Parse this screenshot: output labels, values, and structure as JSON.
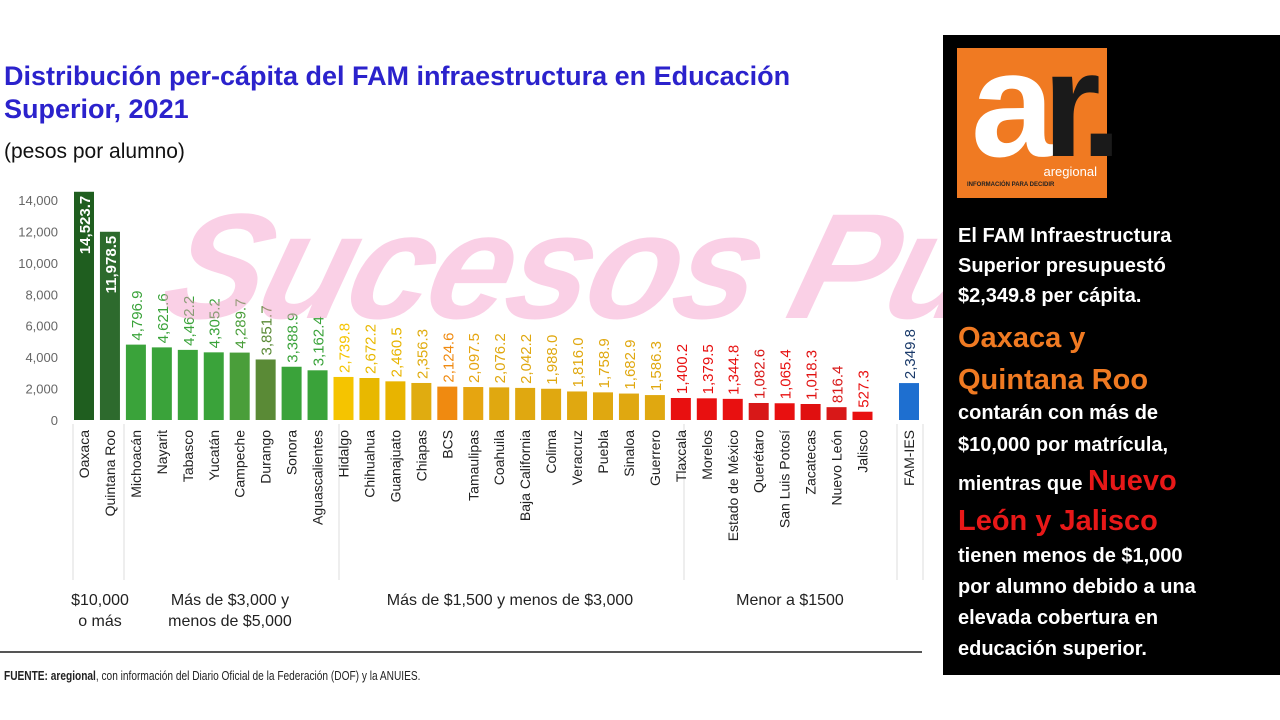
{
  "title": "Distribución per-cápita del FAM infraestructura en Educación Superior, 2021",
  "subtitle": "(pesos por alumno)",
  "chart_data": {
    "type": "bar",
    "title": "Distribución per-cápita del FAM infraestructura en Educación Superior, 2021",
    "ylabel": "(pesos por alumno)",
    "ylim": [
      0,
      14000
    ],
    "yticks": [
      "0",
      "2,000",
      "4,000",
      "6,000",
      "8,000",
      "10,000",
      "12,000",
      "14,000"
    ],
    "grid": false,
    "categories": [
      "Oaxaca",
      "Quintana Roo",
      "Michoacán",
      "Nayarit",
      "Tabasco",
      "Yucatán",
      "Campeche",
      "Durango",
      "Sonora",
      "Aguascalientes",
      "Hidalgo",
      "Chihuahua",
      "Guanajuato",
      "Chiapas",
      "BCS",
      "Tamaulipas",
      "Coahuila",
      "Baja California",
      "Colima",
      "Veracruz",
      "Puebla",
      "Sinaloa",
      "Guerrero",
      "Tlaxcala",
      "Morelos",
      "Estado de México",
      "Querétaro",
      "San Luis Potosí",
      "Zacatecas",
      "Nuevo León",
      "Jalisco",
      "FAM-IES"
    ],
    "values": [
      14523.7,
      11978.5,
      4796.9,
      4621.6,
      4462.2,
      4305.2,
      4289.7,
      3851.7,
      3388.9,
      3162.4,
      2739.8,
      2672.2,
      2460.5,
      2356.3,
      2124.6,
      2097.5,
      2076.2,
      2042.2,
      1988.0,
      1816.0,
      1758.9,
      1682.9,
      1586.3,
      1400.2,
      1379.5,
      1344.8,
      1082.6,
      1065.4,
      1018.3,
      816.4,
      527.3,
      2349.8
    ],
    "value_labels": [
      "14,523.7",
      "11,978.5",
      "4,796.9",
      "4,621.6",
      "4,462.2",
      "4,305.2",
      "4,289.7",
      "3,851.7",
      "3,388.9",
      "3,162.4",
      "2,739.8",
      "2,672.2",
      "2,460.5",
      "2,356.3",
      "2,124.6",
      "2,097.5",
      "2,076.2",
      "2,042.2",
      "1,988.0",
      "1,816.0",
      "1,758.9",
      "1,682.9",
      "1,586.3",
      "1,400.2",
      "1,379.5",
      "1,344.8",
      "1,082.6",
      "1,065.4",
      "1,018.3",
      "816.4",
      "527.3",
      "2,349.8"
    ],
    "colors": [
      "#1f5e1f",
      "#2d6a2d",
      "#3aa33a",
      "#3aa33a",
      "#3aa33a",
      "#3aa33a",
      "#4a9e3a",
      "#5a8a36",
      "#3aa33a",
      "#3aa33a",
      "#f5c400",
      "#e8b800",
      "#e8b400",
      "#e0ac10",
      "#f08a10",
      "#e6a510",
      "#e0a810",
      "#e0a810",
      "#e0a810",
      "#e0a810",
      "#e0a810",
      "#e0a810",
      "#e0a810",
      "#e81010",
      "#e81010",
      "#e81010",
      "#d81818",
      "#e81010",
      "#e01010",
      "#d81818",
      "#e81010",
      "#1e6fd0"
    ],
    "groups": [
      {
        "label": "$10,000 o más",
        "from": 0,
        "to": 1
      },
      {
        "label": "Más de $3,000 y menos de $5,000",
        "from": 2,
        "to": 9
      },
      {
        "label": "Más de $1,500 y menos de $3,000",
        "from": 10,
        "to": 22
      },
      {
        "label": "Menor a $1500",
        "from": 23,
        "to": 30
      }
    ]
  },
  "groups_text": {
    "g1_line1": "$10,000",
    "g1_line2": "o más",
    "g2_line1": "Más de $3,000 y",
    "g2_line2": "menos de $5,000",
    "g3": "Más de $1,500 y menos de $3,000",
    "g4": "Menor a $1500"
  },
  "source": {
    "prefix": "FUENTE:",
    "brand": "aregional",
    "text": ", con información del Diario Oficial de la Federación (DOF) y la ANUIES."
  },
  "panel": {
    "logo": {
      "letters_white": "a",
      "letters_dark": "r.",
      "name": "aregional",
      "tagline": "INFORMACIÓN PARA DECIDIR"
    },
    "p1": [
      "El FAM Infraestructura",
      "Superior presupuestó",
      "$2,349.8 per cápita."
    ],
    "highlight1": [
      "Oaxaca y",
      "Quintana Roo"
    ],
    "p2": [
      "contarán con más de",
      "$10,000 por matrícula,"
    ],
    "p3_prefix": "mientras que",
    "highlight2_a": "Nuevo",
    "highlight2_b": "León y Jalisco",
    "p4": [
      "tienen menos de $1,000",
      "por alumno debido a una",
      "elevada cobertura en",
      "educación superior."
    ],
    "accent_orange": "#f07a22",
    "accent_red": "#e81818"
  },
  "watermark": "Sucesos Puebla"
}
